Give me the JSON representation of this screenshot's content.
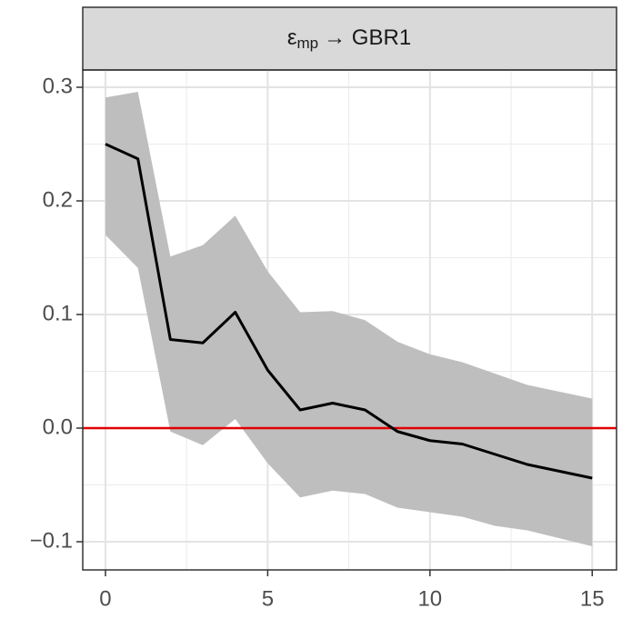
{
  "chart_data": {
    "type": "line",
    "title": "ε",
    "title_subscript": "mp",
    "title_rest": "→ GBR1",
    "x": [
      0,
      1,
      2,
      3,
      4,
      5,
      6,
      7,
      8,
      9,
      10,
      11,
      12,
      13,
      14,
      15
    ],
    "series": [
      {
        "color": "#000000",
        "band_color": "#bebebe",
        "values": [
          0.25,
          0.237,
          0.078,
          0.075,
          0.102,
          0.051,
          0.016,
          0.022,
          0.016,
          -0.003,
          -0.011,
          -0.014,
          -0.023,
          -0.032,
          -0.038,
          -0.044
        ],
        "upper": [
          0.291,
          0.296,
          0.151,
          0.161,
          0.187,
          0.138,
          0.102,
          0.103,
          0.095,
          0.076,
          0.065,
          0.058,
          0.048,
          0.038,
          0.032,
          0.026
        ],
        "lower": [
          0.17,
          0.141,
          -0.003,
          -0.015,
          0.008,
          -0.031,
          -0.061,
          -0.055,
          -0.058,
          -0.07,
          -0.074,
          -0.078,
          -0.086,
          -0.09,
          -0.097,
          -0.104
        ]
      }
    ],
    "hline": 0,
    "hline_color": "#e00000",
    "xlim": [
      -0.7,
      15.75
    ],
    "ylim": [
      -0.1248,
      0.3152
    ],
    "xticks": [
      0,
      5,
      10,
      15
    ],
    "yticks": [
      {
        "value": -0.1,
        "label": "−0.1"
      },
      {
        "value": 0,
        "label": "0.0"
      },
      0.1,
      0.2,
      0.3
    ],
    "xminor": [
      2.5,
      7.5,
      12.5
    ],
    "yminor": [
      -0.05,
      0.05,
      0.15,
      0.25
    ],
    "grid": true
  }
}
